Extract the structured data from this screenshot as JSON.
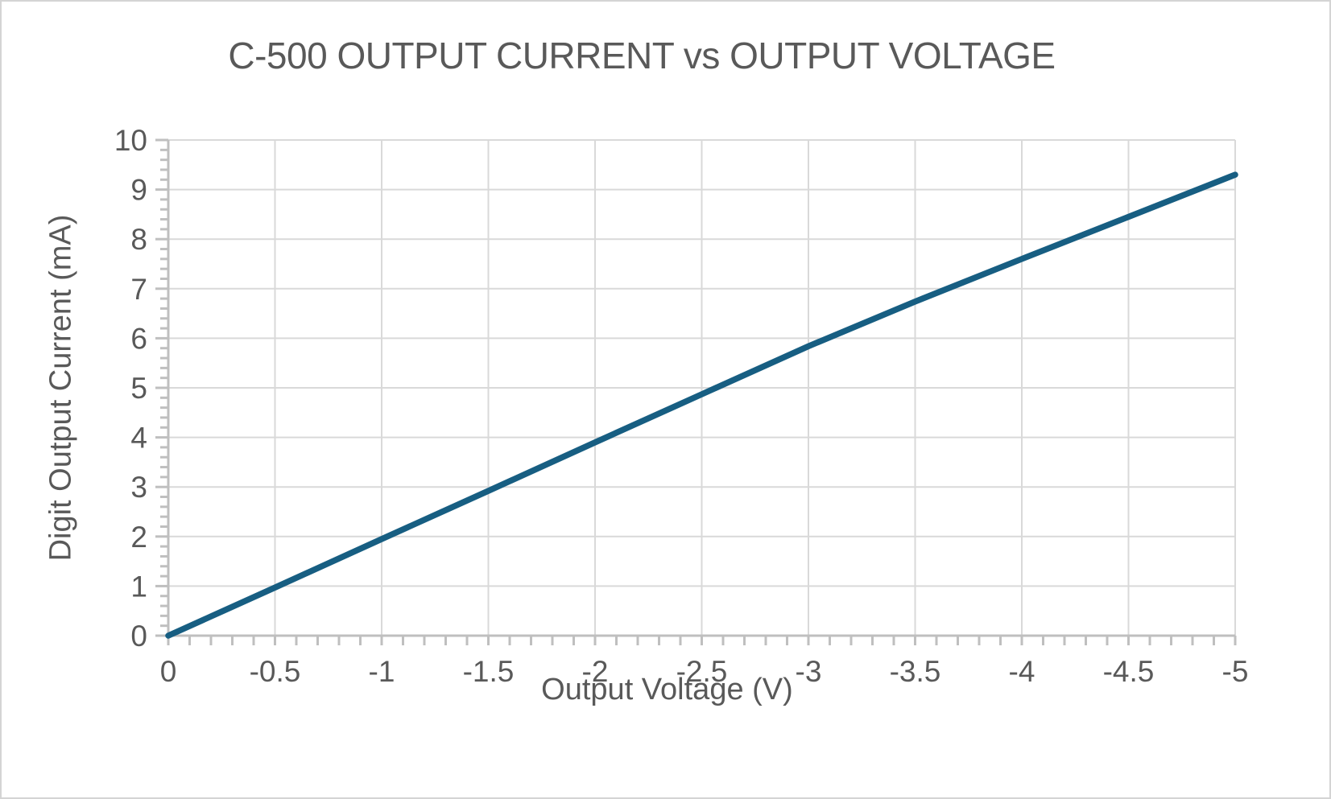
{
  "chart_data": {
    "type": "line",
    "title": "C-500 OUTPUT CURRENT vs OUTPUT VOLTAGE",
    "xlabel": "Output Voltage (V)",
    "ylabel": "Digit Output Current (mA)",
    "x": [
      0,
      -0.5,
      -1,
      -1.5,
      -2,
      -2.5,
      -3,
      -3.5,
      -4,
      -4.5,
      -5
    ],
    "series": [
      {
        "name": "Digit Output Current",
        "values": [
          0,
          0.97,
          1.95,
          2.92,
          3.9,
          4.87,
          5.84,
          6.74,
          7.6,
          8.45,
          9.3
        ]
      }
    ],
    "xlim": [
      0,
      -5
    ],
    "ylim": [
      0,
      10
    ],
    "x_major_unit": 0.5,
    "x_minor_unit": 0.1,
    "y_major_unit": 1,
    "y_minor_unit": 0.2,
    "x_tick_labels": [
      "0",
      "-0.5",
      "-1",
      "-1.5",
      "-2",
      "-2.5",
      "-3",
      "-3.5",
      "-4",
      "-4.5",
      "-5"
    ],
    "y_tick_labels": [
      "0",
      "1",
      "2",
      "3",
      "4",
      "5",
      "6",
      "7",
      "8",
      "9",
      "10"
    ],
    "grid": true,
    "legend_position": "none",
    "colors": {
      "series": "#175E82",
      "gridline": "#D9D9D9",
      "axis": "#BFBFBF",
      "tick_label": "#595959",
      "title": "#595959",
      "background": "#FFFFFF",
      "border": "#D4D4D4"
    }
  }
}
